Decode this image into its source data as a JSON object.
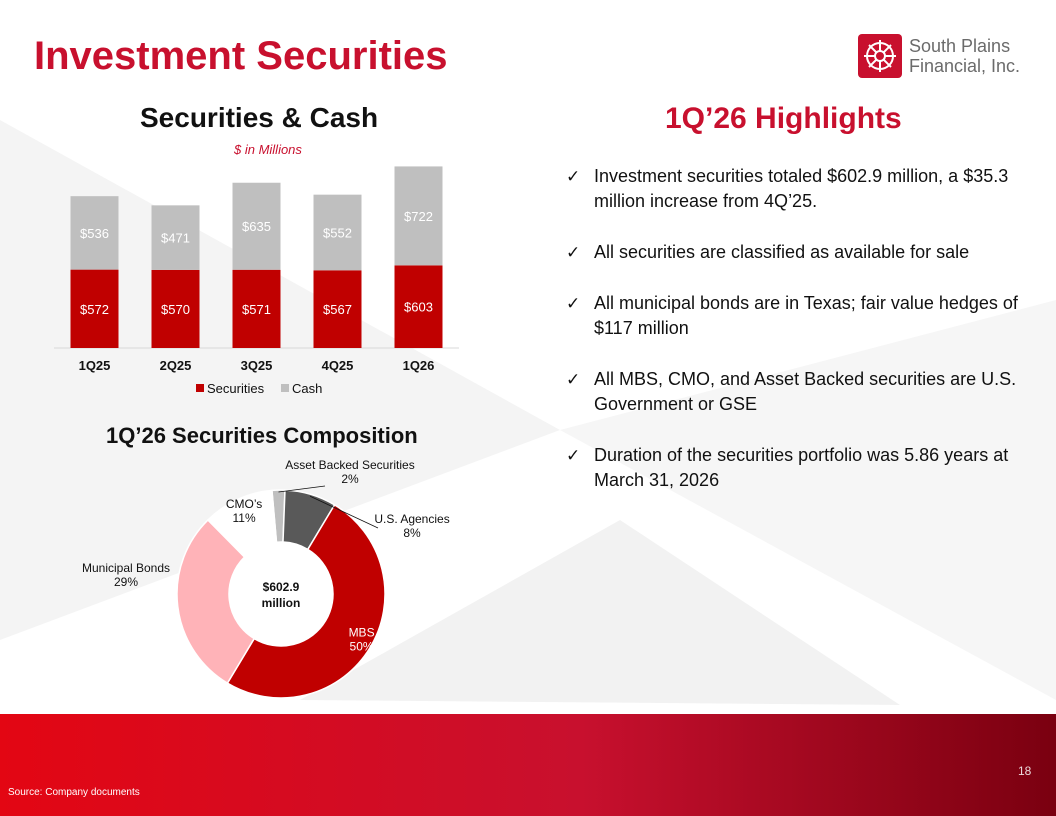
{
  "page": {
    "title": "Investment Securities",
    "source": "Source: Company documents",
    "page_number": "18",
    "colors": {
      "brand_red": "#c8102e",
      "dark_red": "#8b0016",
      "securities_bar": "#c00000",
      "cash_bar": "#bfbfbf"
    }
  },
  "logo": {
    "line1": "South Plains",
    "line2": "Financial, Inc.",
    "icon": "sun-rays-logo-icon"
  },
  "highlights": {
    "title": "1Q’26 Highlights",
    "bullet_icon": "checkmark-icon",
    "bullet_glyph": "✓",
    "items": [
      "Investment securities totaled $602.9 million, a $35.3 million increase from 4Q’25.",
      "All securities are classified as available for sale",
      "All municipal bonds are in Texas; fair value hedges of $117 million",
      "All MBS, CMO, and Asset Backed securities are U.S. Government or GSE",
      "Duration of the securities portfolio was 5.86 years at March 31, 2026"
    ]
  },
  "chart_data": [
    {
      "type": "bar",
      "stacked": true,
      "title": "Securities & Cash",
      "subtitle": "$ in Millions",
      "categories": [
        "1Q25",
        "2Q25",
        "3Q25",
        "4Q25",
        "1Q26"
      ],
      "series": [
        {
          "name": "Securities",
          "values": [
            572,
            570,
            571,
            567,
            603
          ],
          "labels": [
            "$572",
            "$570",
            "$571",
            "$567",
            "$603"
          ],
          "color": "#c00000"
        },
        {
          "name": "Cash",
          "values": [
            536,
            471,
            635,
            552,
            722
          ],
          "labels": [
            "$536",
            "$471",
            "$635",
            "$552",
            "$722"
          ],
          "color": "#bfbfbf"
        }
      ],
      "legend": "bottom",
      "grid": false,
      "ylim": [
        0,
        1350
      ]
    },
    {
      "type": "pie",
      "donut": true,
      "title": "1Q’26 Securities Composition",
      "center_label": [
        "$602.9",
        "million"
      ],
      "slices": [
        {
          "name": "Asset Backed Securities",
          "value": 2,
          "label": "2%",
          "color": "#bfbfbf"
        },
        {
          "name": "U.S. Agencies",
          "value": 8,
          "label": "8%",
          "color": "#595959"
        },
        {
          "name": "MBS",
          "value": 50,
          "label": "50%",
          "color": "#c00000"
        },
        {
          "name": "Municipal Bonds",
          "value": 29,
          "label": "29%",
          "color": "#ffb3b8"
        },
        {
          "name": "CMO’s",
          "value": 11,
          "label": "11%",
          "color": "#ffffff"
        }
      ]
    }
  ]
}
